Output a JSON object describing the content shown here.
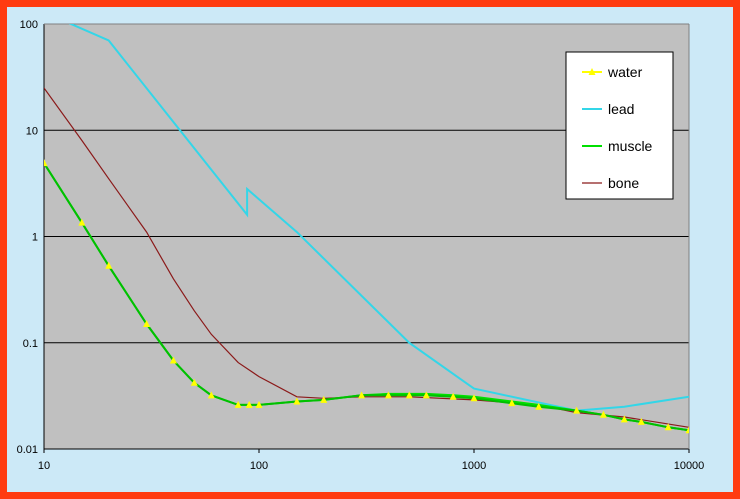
{
  "chart_data": {
    "type": "line",
    "title": "",
    "xlabel": "",
    "ylabel": "",
    "x_scale": "log",
    "y_scale": "log",
    "xlim": [
      10,
      10000
    ],
    "ylim": [
      0.01,
      100
    ],
    "x_ticks": [
      "10",
      "100",
      "1000",
      "10000"
    ],
    "y_ticks": [
      "100",
      "10",
      "1",
      "0.1",
      "0.01"
    ],
    "grid": "horizontal",
    "legend_position": "top-right",
    "background_color": "#c0c0c0",
    "series": [
      {
        "name": "water",
        "color": "#ffff00",
        "line_color": "#00c000",
        "marker": "triangle",
        "x": [
          10,
          15,
          20,
          30,
          40,
          50,
          60,
          80,
          90,
          100,
          150,
          200,
          300,
          400,
          500,
          600,
          800,
          1000,
          1500,
          2000,
          3000,
          4000,
          5000,
          6000,
          8000,
          10000
        ],
        "y": [
          4.9,
          1.35,
          0.53,
          0.15,
          0.068,
          0.042,
          0.032,
          0.026,
          0.026,
          0.026,
          0.028,
          0.029,
          0.032,
          0.032,
          0.032,
          0.032,
          0.031,
          0.03,
          0.027,
          0.025,
          0.023,
          0.021,
          0.019,
          0.018,
          0.016,
          0.015
        ]
      },
      {
        "name": "lead",
        "color": "#33d6e8",
        "x": [
          10,
          12,
          20,
          88,
          88.01,
          150,
          500,
          1000,
          3000,
          5000,
          10000
        ],
        "y": [
          140,
          110,
          70,
          1.6,
          2.8,
          1.1,
          0.1,
          0.037,
          0.023,
          0.025,
          0.031
        ]
      },
      {
        "name": "muscle",
        "color": "#00e000",
        "x": [
          10,
          15,
          20,
          30,
          40,
          50,
          60,
          80,
          100,
          150,
          200,
          300,
          400,
          500,
          600,
          800,
          1000,
          1500,
          2000,
          3000,
          4000,
          5000,
          6000,
          8000,
          10000
        ],
        "y": [
          4.9,
          1.35,
          0.53,
          0.15,
          0.068,
          0.042,
          0.032,
          0.026,
          0.026,
          0.028,
          0.029,
          0.032,
          0.033,
          0.033,
          0.033,
          0.032,
          0.031,
          0.028,
          0.026,
          0.023,
          0.021,
          0.019,
          0.018,
          0.016,
          0.015
        ]
      },
      {
        "name": "bone",
        "color": "#8b1a1a",
        "x": [
          10,
          15,
          20,
          30,
          40,
          50,
          60,
          80,
          100,
          150,
          200,
          300,
          500,
          1000,
          2000,
          3000,
          5000,
          10000
        ],
        "y": [
          25,
          8,
          3.5,
          1.1,
          0.4,
          0.2,
          0.12,
          0.065,
          0.048,
          0.031,
          0.03,
          0.031,
          0.031,
          0.029,
          0.026,
          0.022,
          0.02,
          0.016
        ]
      }
    ]
  }
}
